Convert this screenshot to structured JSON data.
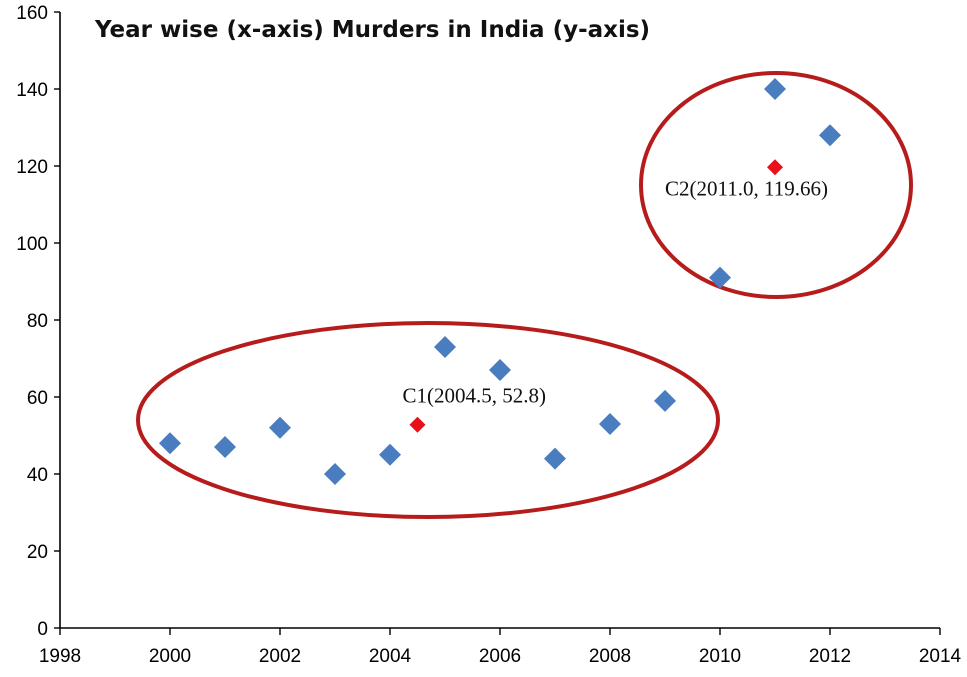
{
  "chart_data": {
    "type": "scatter",
    "title": "Year wise (x-axis) Murders in India (y-axis)",
    "xlabel": "",
    "ylabel": "",
    "xlim": [
      1998,
      2014
    ],
    "ylim": [
      0,
      160
    ],
    "x_ticks": [
      1998,
      2000,
      2002,
      2004,
      2006,
      2008,
      2010,
      2012,
      2014
    ],
    "y_ticks": [
      0,
      20,
      40,
      60,
      80,
      100,
      120,
      140,
      160
    ],
    "grid": false,
    "legend": "none",
    "series": [
      {
        "marker": "diamond",
        "color": "#4a7cc0",
        "points": [
          {
            "x": 2000,
            "y": 48
          },
          {
            "x": 2001,
            "y": 47
          },
          {
            "x": 2002,
            "y": 52
          },
          {
            "x": 2003,
            "y": 40
          },
          {
            "x": 2004,
            "y": 45
          },
          {
            "x": 2005,
            "y": 73
          },
          {
            "x": 2006,
            "y": 67
          },
          {
            "x": 2007,
            "y": 44
          },
          {
            "x": 2008,
            "y": 53
          },
          {
            "x": 2009,
            "y": 59
          },
          {
            "x": 2010,
            "y": 91
          },
          {
            "x": 2011,
            "y": 140
          },
          {
            "x": 2012,
            "y": 128
          }
        ]
      }
    ],
    "centroids": [
      {
        "label": "C1(2004.5, 52.8)",
        "x": 2004.5,
        "y": 52.8,
        "color": "#e8101a"
      },
      {
        "label": "C2(2011.0, 119.66)",
        "x": 2011.0,
        "y": 119.66,
        "color": "#e8101a"
      }
    ],
    "cluster_outline_color": "#b71c1c"
  }
}
